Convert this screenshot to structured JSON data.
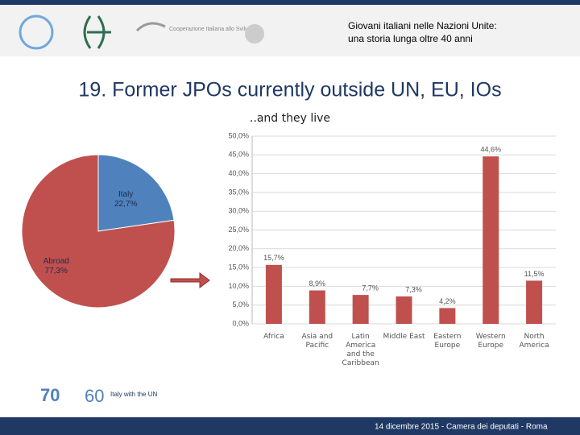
{
  "header": {
    "line1": "Giovani italiani nelle Nazioni Unite:",
    "line2": "una storia lunga oltre 40 anni",
    "logo_text": "Cooperazione Italiana allo Sviluppo"
  },
  "title": "19. Former JPOs currently outside UN, EU, IOs",
  "footer": {
    "text": "14 dicembre 2015 - Camera dei deputati - Roma",
    "logo_number": "60",
    "logo_text": "Italy with the UN"
  },
  "chart_data": [
    {
      "type": "pie",
      "categories": [
        "Italy",
        "Abroad"
      ],
      "values": [
        22.7,
        77.3
      ],
      "value_labels": [
        "22,7%",
        "77,3%"
      ],
      "colors": [
        "#4f81bd",
        "#c0504d"
      ]
    },
    {
      "type": "bar",
      "title": "..and they live",
      "categories": [
        "Africa",
        "Asia and Pacific",
        "Latin America and the Caribbean",
        "Middle East",
        "Eastern Europe",
        "Western Europe",
        "North America"
      ],
      "values": [
        15.7,
        8.9,
        7.7,
        7.3,
        4.2,
        44.6,
        11.5
      ],
      "value_labels": [
        "15,7%",
        "8,9%",
        "7,7%",
        "7,3%",
        "4,2%",
        "44,6%",
        "11,5%"
      ],
      "color": "#c0504d",
      "ylim": [
        0,
        50
      ],
      "yticks": [
        {
          "value": 0,
          "label": "0,0%"
        },
        {
          "value": 5,
          "label": "5,0%"
        },
        {
          "value": 10,
          "label": "10,0%"
        },
        {
          "value": 15,
          "label": "15,0%"
        },
        {
          "value": 20,
          "label": "20,0%"
        },
        {
          "value": 25,
          "label": "25,0%"
        },
        {
          "value": 30,
          "label": "30,0%"
        },
        {
          "value": 35,
          "label": "35,0%"
        },
        {
          "value": 40,
          "label": "40,0%"
        },
        {
          "value": 45,
          "label": "45,0%"
        },
        {
          "value": 50,
          "label": "50,0%"
        }
      ],
      "grid": true
    }
  ]
}
